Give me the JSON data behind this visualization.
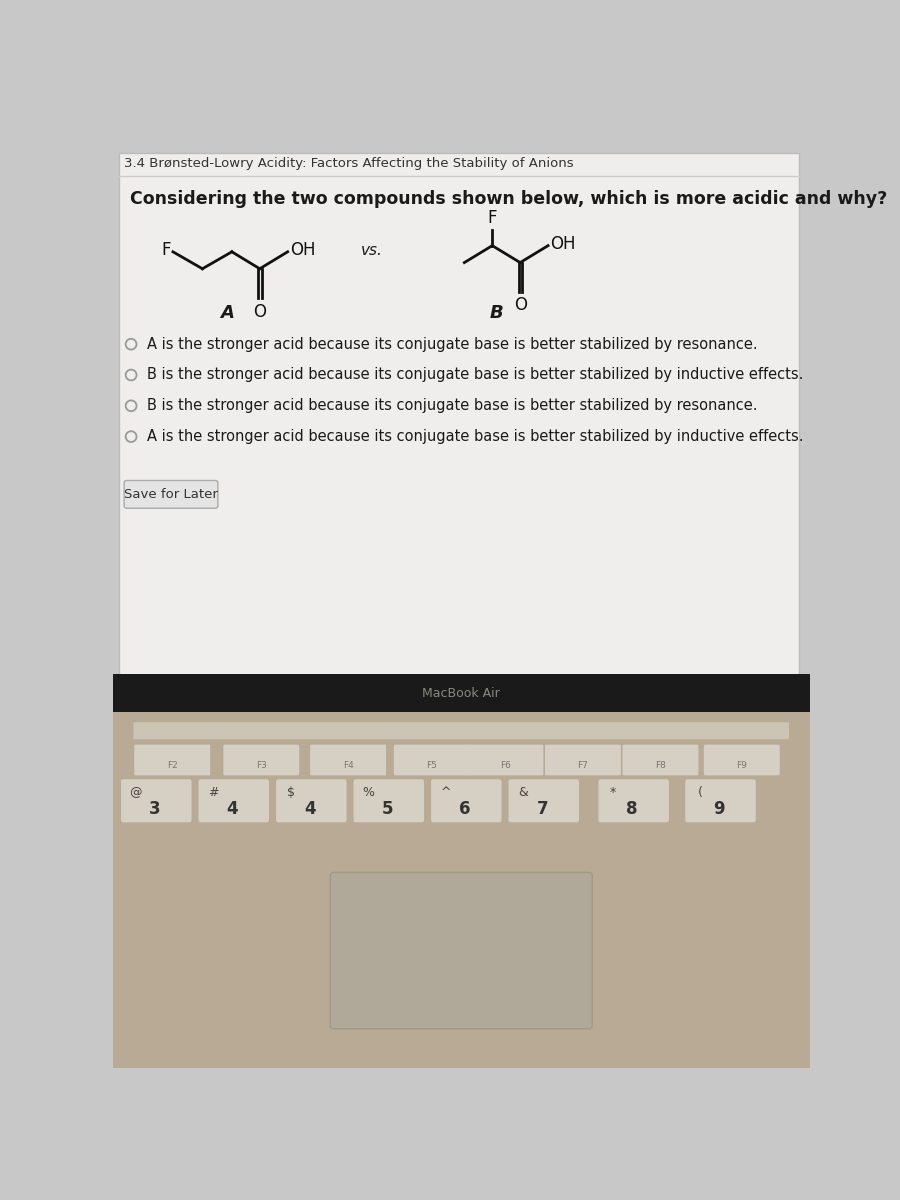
{
  "page_title": "3.4 Brønsted-Lowry Acidity: Factors Affecting the Stability of Anions",
  "question": "Considering the two compounds shown below, which is more acidic and why?",
  "label_A": "A",
  "label_B": "B",
  "vs_text": "vs.",
  "choices": [
    "A is the stronger acid because its conjugate base is better stabilized by resonance.",
    "B is the stronger acid because its conjugate base is better stabilized by inductive effects.",
    "B is the stronger acid because its conjugate base is better stabilized by resonance.",
    "A is the stronger acid because its conjugate base is better stabilized by inductive effects."
  ],
  "button_text": "Save for Later",
  "macbook_text": "MacBook Air",
  "screen_bg": "#c8c8c8",
  "content_bg": "#f0eeec",
  "bezel_color": "#1a1a1a",
  "keyboard_color": "#b8aa95",
  "key_color": "#d5cfc4",
  "text_color": "#1a1a1a",
  "title_color": "#333333"
}
